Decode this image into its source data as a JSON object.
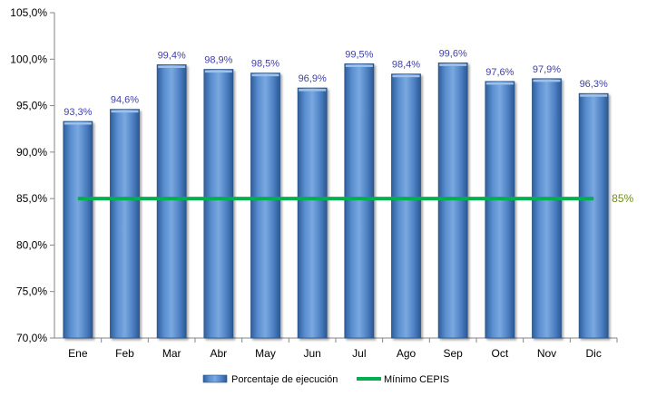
{
  "chart_data": {
    "type": "bar",
    "categories": [
      "Ene",
      "Feb",
      "Mar",
      "Abr",
      "May",
      "Jun",
      "Jul",
      "Ago",
      "Sep",
      "Oct",
      "Nov",
      "Dic"
    ],
    "series": [
      {
        "name": "Porcentaje de ejecución",
        "type": "bar",
        "values": [
          93.3,
          94.6,
          99.4,
          98.9,
          98.5,
          96.9,
          99.5,
          98.4,
          99.6,
          97.6,
          97.9,
          96.3
        ],
        "labels": [
          "93,3%",
          "94,6%",
          "99,4%",
          "98,9%",
          "98,5%",
          "96,9%",
          "99,5%",
          "98,4%",
          "99,6%",
          "97,6%",
          "97,9%",
          "96,3%"
        ],
        "color": "#4f81bd"
      },
      {
        "name": "Mínimo CEPIS",
        "type": "line",
        "value": 85,
        "label": "85%",
        "color": "#00b050"
      }
    ],
    "yticks": [
      "70,0%",
      "75,0%",
      "80,0%",
      "85,0%",
      "90,0%",
      "95,0%",
      "100,0%",
      "105,0%"
    ],
    "ylim": [
      70,
      105
    ],
    "grid": false,
    "legend_position": "bottom"
  }
}
